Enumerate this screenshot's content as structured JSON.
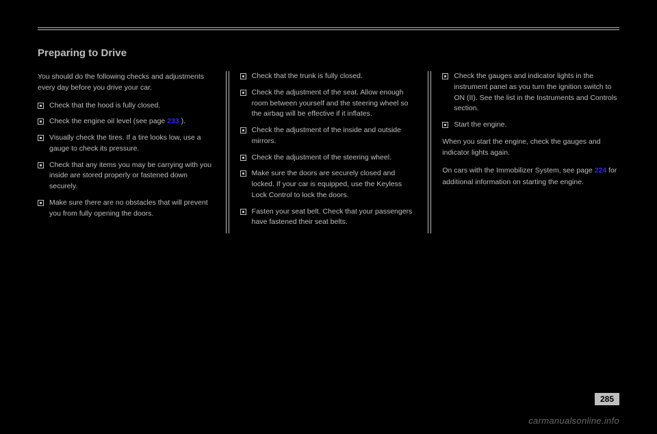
{
  "title": "Preparing to Drive",
  "col1": {
    "intro": "You should do the following checks and adjustments every day before you drive your car.",
    "bullets": [
      {
        "text": "Check that the hood is fully closed."
      },
      {
        "text": "Check the engine oil level (see page ",
        "link": "233",
        "tail": " )."
      },
      {
        "text": "Visually check the tires. If a tire looks low, use a gauge to check its pressure."
      },
      {
        "text": "Check that any items you may be carrying with you inside are stored properly or fastened down securely."
      },
      {
        "text": "Make sure there are no obstacles that will prevent you from fully opening the doors."
      }
    ]
  },
  "col2": {
    "bullets": [
      {
        "text": "Check that the trunk is fully closed."
      },
      {
        "text": "Check the adjustment of the seat. Allow enough room between yourself and the steering wheel so the airbag will be effective if it inflates."
      },
      {
        "text": "Check the adjustment of the inside and outside mirrors."
      },
      {
        "text": "Check the adjustment of the steering wheel."
      },
      {
        "text": "Make sure the doors are securely closed and locked. If your car is equipped, use the Keyless Lock Control to lock the doors."
      },
      {
        "text": "Fasten your seat belt. Check that your passengers have fastened their seat belts."
      }
    ]
  },
  "col3": {
    "bullets": [
      {
        "text": "Check the gauges and indicator lights in the instrument panel as you turn the ignition switch to ON (II). See the list in the Instruments and Controls section."
      },
      {
        "text": "Start the engine."
      }
    ],
    "para": "When you start the engine, check the gauges and indicator lights again.",
    "tail": "On cars with the Immobilizer System, see page ",
    "link": "224",
    "tail2": " for additional information on starting the engine."
  },
  "pageNumber": "285",
  "watermark": "carmanualsonline.info",
  "colors": {
    "bg": "#000000",
    "text": "#bfbfbf",
    "link": "#2a2af0"
  }
}
